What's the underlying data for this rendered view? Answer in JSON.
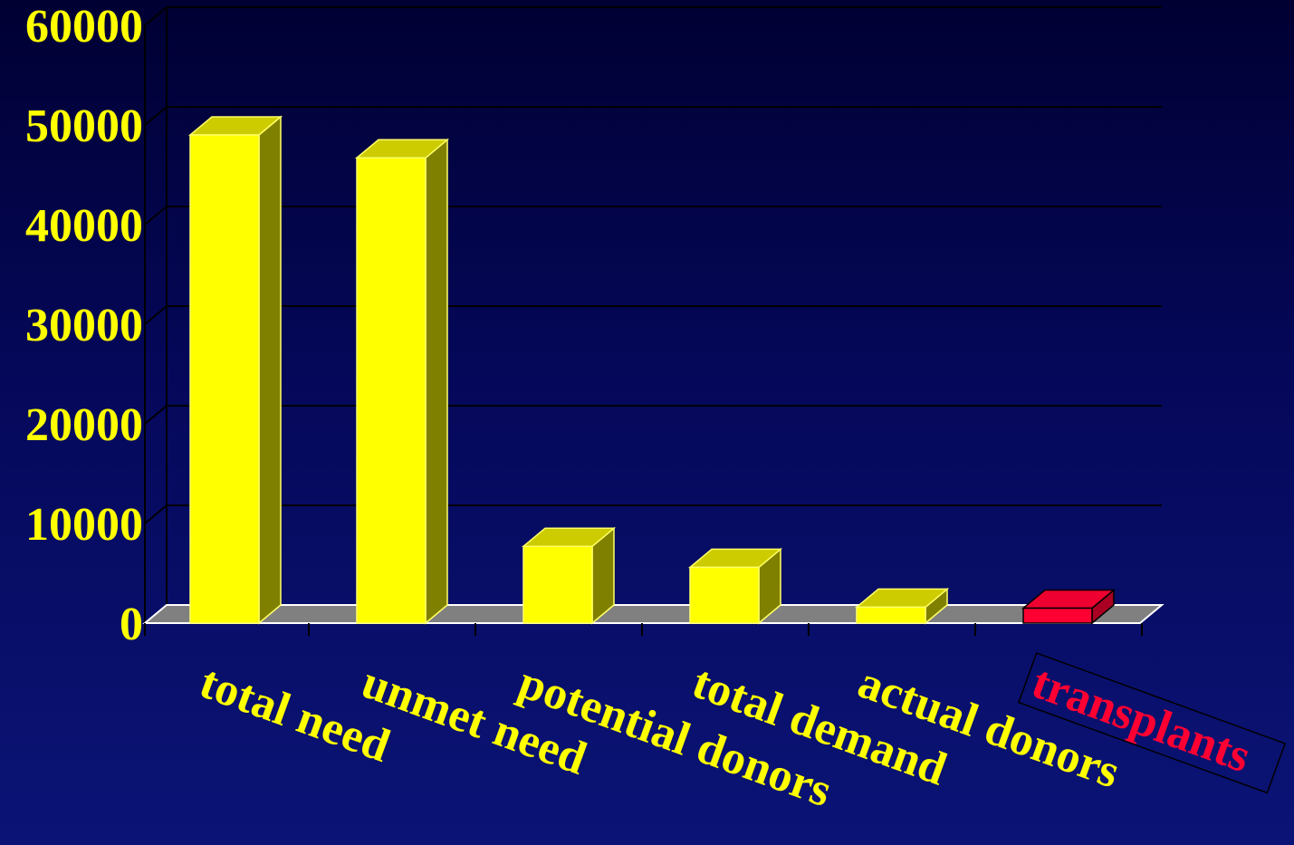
{
  "chart_data": {
    "type": "bar",
    "categories": [
      "total need",
      "unmet need",
      "potential donors",
      "total demand",
      "actual donors",
      "transplants"
    ],
    "values": [
      49000,
      46700,
      7700,
      5600,
      1600,
      1500
    ],
    "highlight_index": 5,
    "ylim": [
      0,
      60000
    ],
    "yticks": [
      "60000",
      "50000",
      "40000",
      "30000",
      "20000",
      "10000",
      "0"
    ],
    "grid": true,
    "title": "",
    "xlabel": "",
    "ylabel": ""
  },
  "colors": {
    "bar_front": "#ffff00",
    "bar_top": "#cccc00",
    "bar_side": "#808000",
    "highlight_front": "#ff0033",
    "highlight_top": "#ee0030",
    "highlight_side": "#aa0022",
    "floor": "#808080",
    "grid": "#000000",
    "tick_label": "#ffff00",
    "highlight_label": "#ff0033"
  }
}
